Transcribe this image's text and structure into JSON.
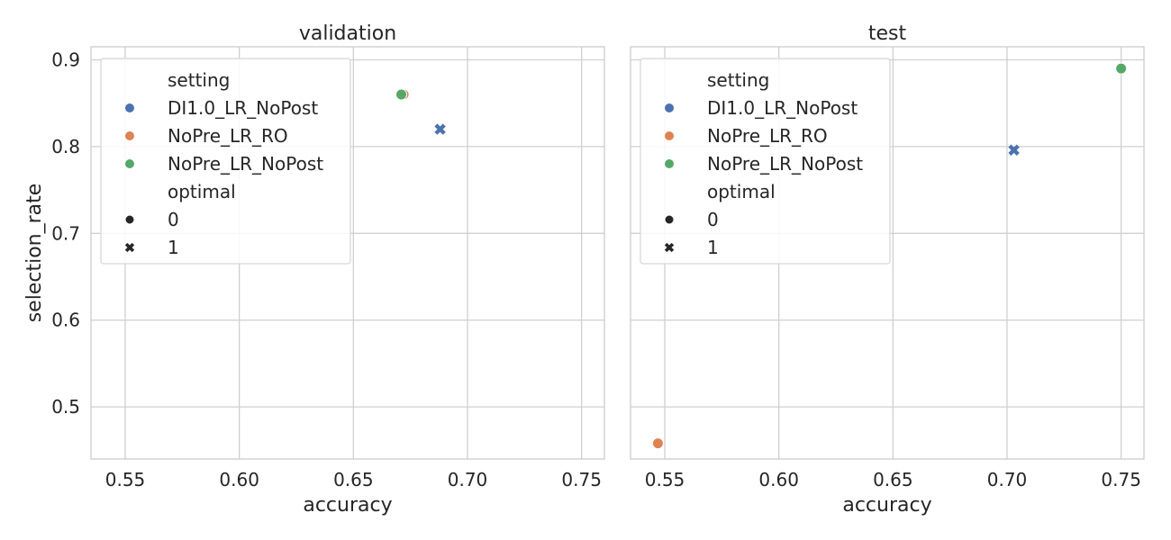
{
  "chart_data": {
    "type": "scatter",
    "ylabel": "selection_rate",
    "ylim": [
      0.44,
      0.915
    ],
    "yticks": [
      0.5,
      0.6,
      0.7,
      0.8,
      0.9
    ],
    "ytick_labels": [
      "0.5",
      "0.6",
      "0.7",
      "0.8",
      "0.9"
    ],
    "xlim": [
      0.535,
      0.76
    ],
    "xticks": [
      0.55,
      0.6,
      0.65,
      0.7,
      0.75
    ],
    "xtick_labels": [
      "0.55",
      "0.60",
      "0.65",
      "0.70",
      "0.75"
    ],
    "grid": true,
    "legend": {
      "placement": "upper-left",
      "hue_title": "setting",
      "style_title": "optimal",
      "settings": [
        {
          "name": "DI1.0_LR_NoPost",
          "color": "#4c72b0"
        },
        {
          "name": "NoPre_LR_RO",
          "color": "#dd8452"
        },
        {
          "name": "NoPre_LR_NoPost",
          "color": "#55a868"
        }
      ],
      "markers": [
        {
          "label": "0",
          "shape": "circle"
        },
        {
          "label": "1",
          "shape": "x"
        }
      ]
    },
    "panels": [
      {
        "title": "validation",
        "xlabel": "accuracy",
        "points": [
          {
            "setting": "DI1.0_LR_NoPost",
            "optimal": 1,
            "x": 0.688,
            "y": 0.82
          },
          {
            "setting": "NoPre_LR_RO",
            "optimal": 0,
            "x": 0.672,
            "y": 0.86
          },
          {
            "setting": "NoPre_LR_NoPost",
            "optimal": 0,
            "x": 0.671,
            "y": 0.86
          }
        ]
      },
      {
        "title": "test",
        "xlabel": "accuracy",
        "points": [
          {
            "setting": "DI1.0_LR_NoPost",
            "optimal": 1,
            "x": 0.703,
            "y": 0.796
          },
          {
            "setting": "NoPre_LR_RO",
            "optimal": 0,
            "x": 0.547,
            "y": 0.458
          },
          {
            "setting": "NoPre_LR_NoPost",
            "optimal": 0,
            "x": 0.75,
            "y": 0.89
          }
        ]
      }
    ]
  }
}
